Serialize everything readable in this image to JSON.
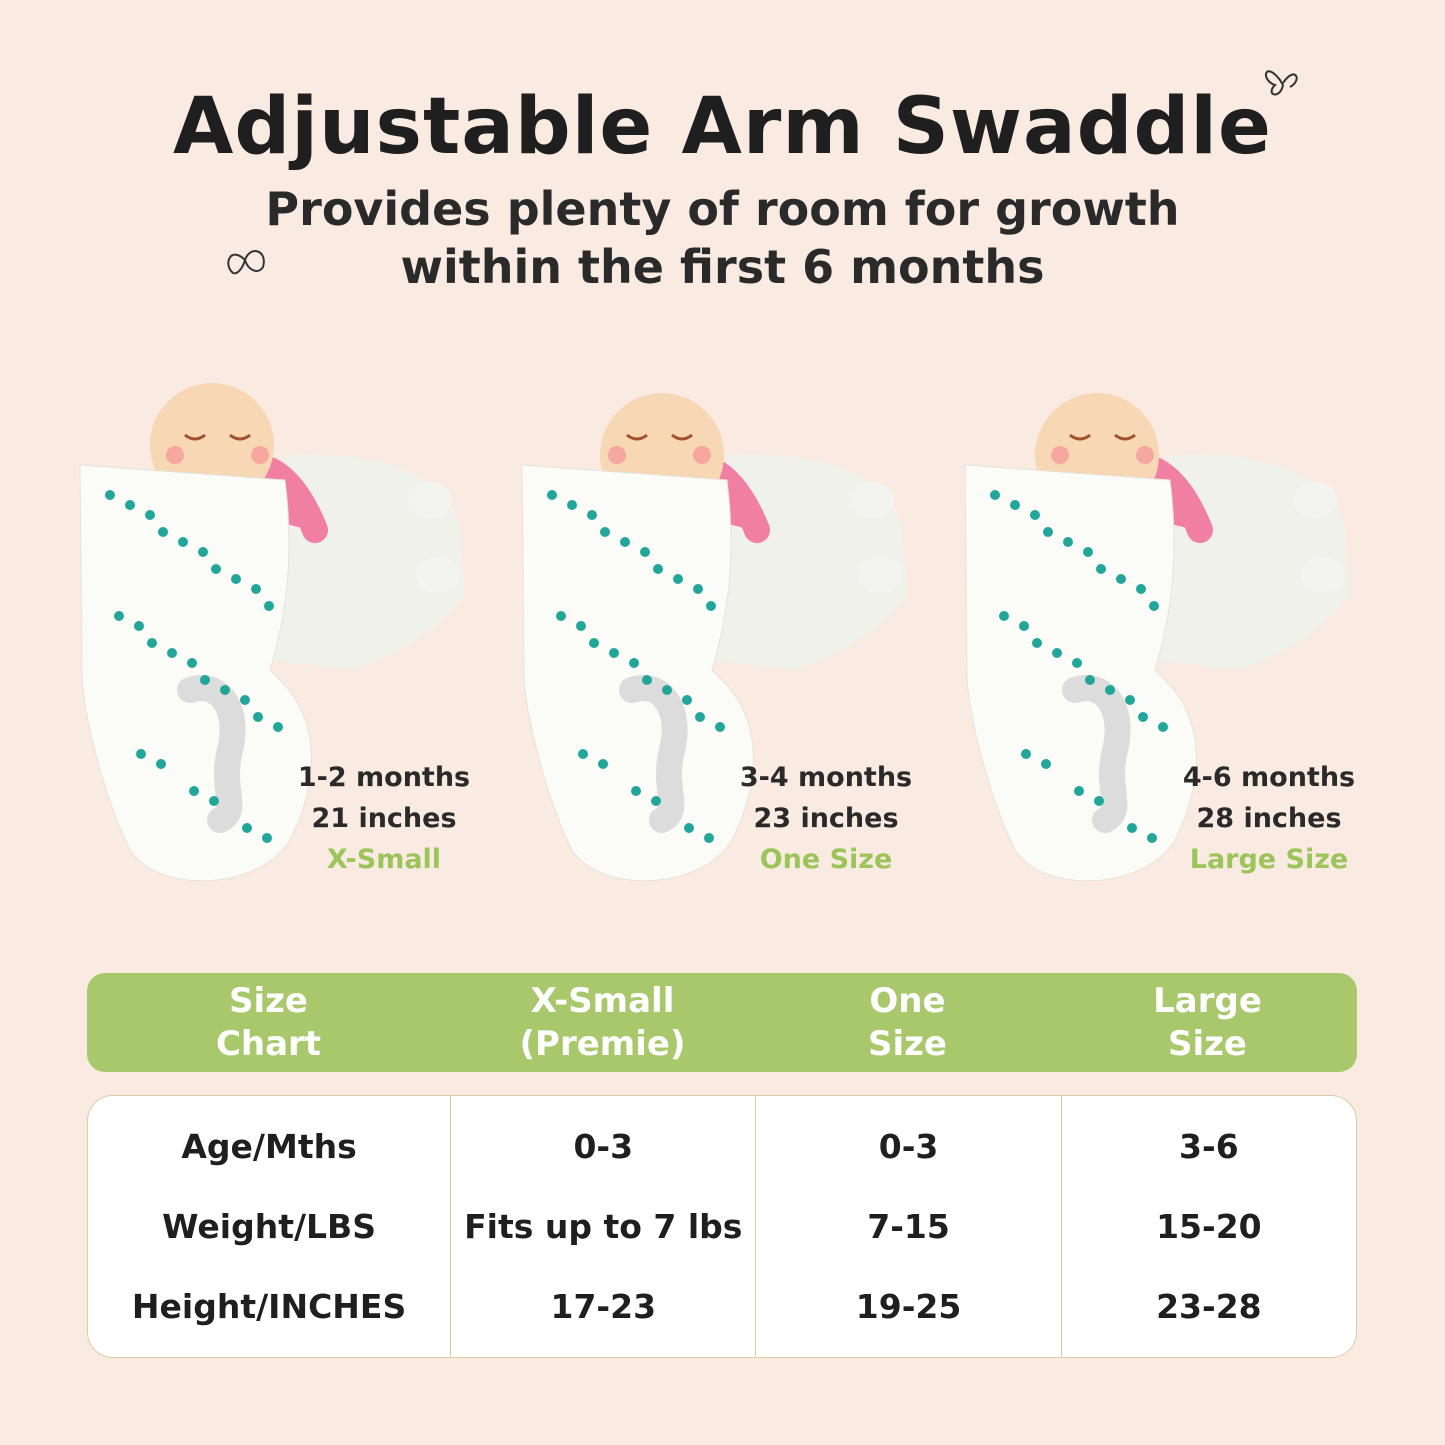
{
  "header": {
    "title": "Adjustable Arm Swaddle",
    "subtitle_line1": "Provides plenty of room for growth",
    "subtitle_line2": "within the first 6 months"
  },
  "products": [
    {
      "age": "1-2 months",
      "length": "21 inches",
      "size": "X-Small"
    },
    {
      "age": "3-4 months",
      "length": "23 inches",
      "size": "One Size"
    },
    {
      "age": "4-6 months",
      "length": "28 inches",
      "size": "Large Size"
    }
  ],
  "table": {
    "headers": [
      "Size\nChart",
      "X-Small\n(Premie)",
      "One\nSize",
      "Large\nSize"
    ],
    "row_labels": [
      "Age/Mths",
      "Weight/LBS",
      "Height/INCHES"
    ],
    "columns": [
      [
        "0-3",
        "Fits up to 7 lbs",
        "17-23"
      ],
      [
        "0-3",
        "7-15",
        "19-25"
      ],
      [
        "3-6",
        "15-20",
        "23-28"
      ]
    ]
  },
  "colors": {
    "background": "#f9ebe2",
    "accent_green": "#a9c76b",
    "size_text_green": "#9dc45b"
  }
}
